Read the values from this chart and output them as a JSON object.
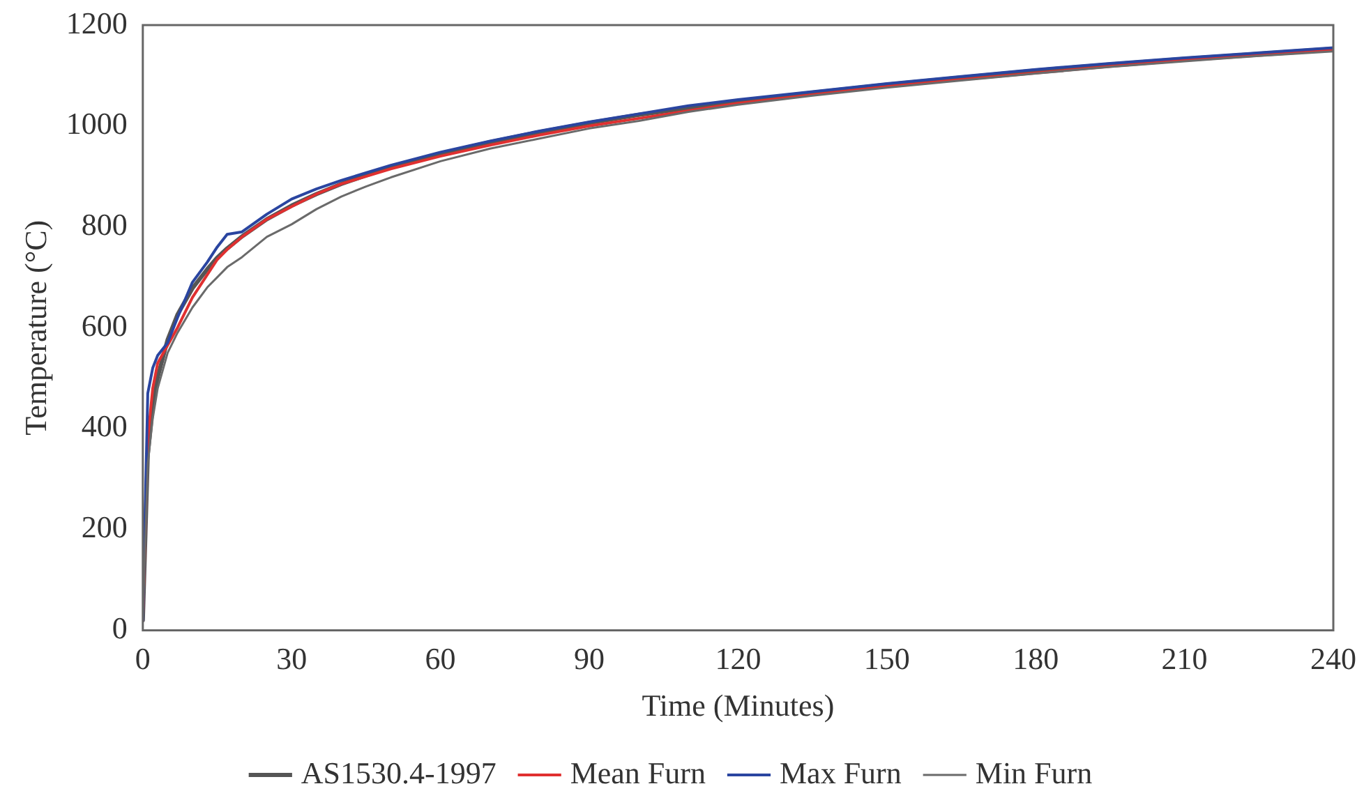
{
  "chart_data": {
    "type": "line",
    "xlabel": "Time (Minutes)",
    "ylabel": "Temperature (°C)",
    "x": [
      0,
      1,
      2,
      3,
      5,
      7,
      10,
      13,
      15,
      17,
      20,
      25,
      30,
      35,
      40,
      45,
      50,
      60,
      70,
      80,
      90,
      100,
      110,
      120,
      135,
      150,
      165,
      180,
      195,
      210,
      225,
      240
    ],
    "xlim": [
      0,
      240
    ],
    "xticks": [
      0,
      30,
      60,
      90,
      120,
      150,
      180,
      210,
      240
    ],
    "ylim": [
      0,
      1200
    ],
    "yticks": [
      0,
      200,
      400,
      600,
      800,
      1000,
      1200
    ],
    "grid": false,
    "legend": "bottom",
    "marker": "none",
    "line_style": "solid",
    "series": [
      {
        "name": "AS1530.4-1997",
        "color": "#555555",
        "values": [
          20,
          349,
          445,
          502,
          576,
          626,
          678,
          716,
          739,
          757,
          781,
          815,
          842,
          865,
          885,
          902,
          918,
          945,
          968,
          988,
          1006,
          1022,
          1036,
          1049,
          1066,
          1082,
          1096,
          1110,
          1122,
          1133,
          1143,
          1153
        ]
      },
      {
        "name": "Mean Furn",
        "color": "#e03030",
        "values": [
          20,
          380,
          480,
          530,
          565,
          600,
          660,
          705,
          735,
          755,
          780,
          815,
          840,
          865,
          885,
          900,
          915,
          940,
          962,
          982,
          1000,
          1015,
          1030,
          1045,
          1062,
          1078,
          1092,
          1105,
          1118,
          1130,
          1140,
          1150
        ]
      },
      {
        "name": "Max Furn",
        "color": "#2a45a0",
        "values": [
          20,
          470,
          520,
          545,
          570,
          620,
          690,
          730,
          760,
          785,
          790,
          825,
          855,
          875,
          892,
          907,
          922,
          948,
          970,
          990,
          1008,
          1024,
          1040,
          1052,
          1068,
          1084,
          1098,
          1112,
          1124,
          1135,
          1145,
          1155
        ]
      },
      {
        "name": "Min Furn",
        "color": "#6a6a6a",
        "values": [
          20,
          330,
          420,
          480,
          550,
          590,
          640,
          680,
          700,
          720,
          740,
          780,
          805,
          835,
          860,
          880,
          898,
          930,
          955,
          975,
          995,
          1010,
          1028,
          1042,
          1060,
          1076,
          1090,
          1104,
          1117,
          1128,
          1139,
          1148
        ]
      }
    ]
  }
}
